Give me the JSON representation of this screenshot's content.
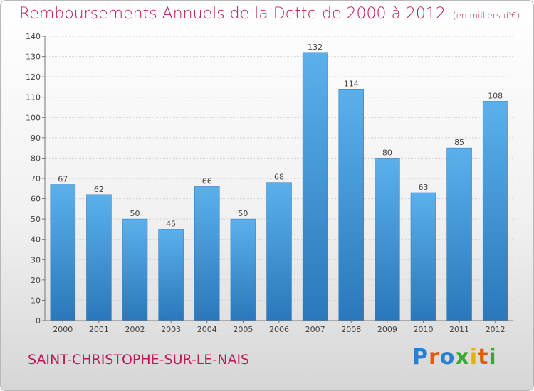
{
  "header": {
    "title": "Remboursements Annuels de la Dette de 2000 à 2012",
    "subtitle": "(en milliers d'€)"
  },
  "footer": {
    "commune": "SAINT-CHRISTOPHE-SUR-LE-NAIS",
    "logo_letters": [
      "P",
      "r",
      "o",
      "x",
      "i",
      "t",
      "i"
    ],
    "logo_colors": [
      "#2b7fd0",
      "#e65a0a",
      "#2b7fd0",
      "#3aa832",
      "#e0b400",
      "#e65a0a",
      "#3aa832"
    ]
  },
  "chart_data": {
    "type": "bar",
    "categories": [
      "2000",
      "2001",
      "2002",
      "2003",
      "2004",
      "2005",
      "2006",
      "2007",
      "2008",
      "2009",
      "2010",
      "2011",
      "2012"
    ],
    "values": [
      67,
      62,
      50,
      45,
      66,
      50,
      68,
      132,
      114,
      80,
      63,
      85,
      108
    ],
    "ylim": [
      0,
      140
    ],
    "ytick_step": 10,
    "grid": true,
    "bar_color": "#4a9fe0"
  }
}
